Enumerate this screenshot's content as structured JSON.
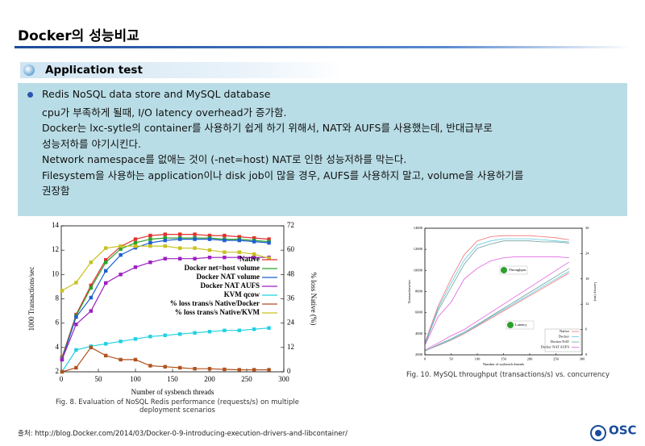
{
  "header": {
    "title": "Docker의 성능비교"
  },
  "section": {
    "title": "Application test"
  },
  "bullet": {
    "lines": [
      "Redis NoSQL data store and MySQL database",
      "cpu가 부족하게 될때, I/O latency  overhead가 증가함.",
      "Docker는 lxc-sytle의  container를  사용하기 쉽게 하기 위해서, NAT와 AUFS를  사용했는데, 반대급부로",
      "성능저하를 야기시킨다.",
      "Network namespace를 없애는 것이 (-net=host)  NAT로 인한 성능저하를 막는다.",
      "Filesystem을  사용하는 application이나  disk job이 많을 경우, AUFS를  사용하지 말고, volume을 사용하기를",
      "권장함"
    ]
  },
  "chart_data": [
    {
      "type": "line",
      "caption": "Fig. 8. Evaluation of NoSQL Redis performance (requests/s) on multiple deployment scenarios",
      "xlabel": "Number of sysbench threads",
      "ylabel": "1000 Transactions/sec",
      "y2label": "% loss Native (%)",
      "x": [
        1,
        20,
        40,
        60,
        80,
        100,
        120,
        140,
        160,
        180,
        200,
        220,
        240,
        260,
        280
      ],
      "xlim": [
        0,
        300
      ],
      "xticks": [
        0,
        50,
        100,
        150,
        200,
        250,
        300
      ],
      "ylim": [
        2,
        14
      ],
      "yticks": [
        2,
        4,
        6,
        8,
        10,
        12,
        14
      ],
      "y2lim": [
        0,
        72
      ],
      "y2ticks": [
        0,
        12,
        24,
        36,
        48,
        60,
        72
      ],
      "legend": "right",
      "series": [
        {
          "name": "Native",
          "color": "#e0302c",
          "values": [
            3.2,
            6.7,
            9.1,
            11.2,
            12.3,
            12.9,
            13.2,
            13.3,
            13.3,
            13.3,
            13.2,
            13.2,
            13.1,
            13.0,
            12.9
          ]
        },
        {
          "name": "Docker net=host volume",
          "color": "#2ca02c",
          "values": [
            3.1,
            6.6,
            8.9,
            11.0,
            12.1,
            12.6,
            12.9,
            13.0,
            13.0,
            13.0,
            13.0,
            12.9,
            12.9,
            12.8,
            12.7
          ]
        },
        {
          "name": "Docker NAT volume",
          "color": "#1f5fd0",
          "values": [
            3.0,
            6.5,
            8.1,
            10.3,
            11.6,
            12.2,
            12.6,
            12.8,
            12.9,
            12.9,
            12.9,
            12.8,
            12.8,
            12.7,
            12.6
          ]
        },
        {
          "name": "Docker NAT AUFS",
          "color": "#9c1fc0",
          "values": [
            3.0,
            5.9,
            7.0,
            9.3,
            10.0,
            10.6,
            11.0,
            11.3,
            11.3,
            11.3,
            11.4,
            11.4,
            11.4,
            11.4,
            11.4
          ]
        },
        {
          "name": "KVM qcow",
          "color": "#22d0e0",
          "values": [
            2.0,
            3.8,
            4.1,
            4.3,
            4.5,
            4.7,
            4.9,
            5.0,
            5.1,
            5.2,
            5.3,
            5.4,
            5.4,
            5.5,
            5.6
          ]
        },
        {
          "name": "% loss trans/s Native/Docker",
          "color": "#b0521e",
          "axis": "y2",
          "values": [
            0,
            2,
            12,
            8,
            6,
            6,
            3,
            2.5,
            2,
            1.5,
            1.5,
            1.2,
            1,
            1,
            1
          ]
        },
        {
          "name": "% loss trans/s Native/KVM",
          "color": "#c8c020",
          "axis": "y2",
          "values": [
            40,
            44,
            54,
            61,
            62,
            62,
            62,
            62,
            61,
            61,
            60,
            59,
            59,
            58,
            56
          ]
        }
      ]
    },
    {
      "type": "line",
      "caption": "Fig. 10. MySQL throughput (transactions/s) vs. concurrency",
      "xlabel": "Number of sysbench threads",
      "ylabel": "Transactions/sec",
      "y2label": "Latency (ms)",
      "x": [
        1,
        25,
        50,
        75,
        100,
        125,
        150,
        175,
        200,
        225,
        250,
        275
      ],
      "xlim": [
        0,
        300
      ],
      "xticks": [
        0,
        50,
        100,
        150,
        200,
        250,
        300
      ],
      "ylim": [
        2000,
        14000
      ],
      "yticks": [
        2000,
        4000,
        6000,
        8000,
        10000,
        12000,
        14000
      ],
      "y2lim": [
        0,
        30
      ],
      "y2ticks": [
        0,
        6,
        12,
        18,
        24,
        30
      ],
      "legend": "lower right",
      "annotations": [
        "Throughput",
        "Latency"
      ],
      "series": [
        {
          "name": "Native",
          "color": "#f07070",
          "values": [
            3300,
            6600,
            9200,
            11500,
            12800,
            13200,
            13300,
            13300,
            13300,
            13200,
            13100,
            12900
          ],
          "latency": [
            1,
            2.2,
            3.5,
            5,
            6.8,
            8.6,
            10.4,
            12.2,
            14,
            15.8,
            17.6,
            19.4
          ]
        },
        {
          "name": "Docker",
          "color": "#60c8e0",
          "values": [
            3200,
            6400,
            8800,
            11000,
            12400,
            12800,
            13000,
            13000,
            13000,
            12900,
            12800,
            12700
          ],
          "latency": [
            1,
            2.3,
            3.6,
            5.2,
            7,
            8.9,
            10.7,
            12.5,
            14.3,
            16.2,
            18,
            19.8
          ]
        },
        {
          "name": "Docker NAT",
          "color": "#70a0a0",
          "values": [
            3100,
            6200,
            8400,
            10600,
            12100,
            12500,
            12800,
            12800,
            12800,
            12700,
            12700,
            12600
          ],
          "latency": [
            1,
            2.4,
            3.8,
            5.4,
            7.2,
            9.1,
            11,
            12.9,
            14.8,
            16.7,
            18.6,
            20.5
          ]
        },
        {
          "name": "Docker NAT AUFS",
          "color": "#e060e0",
          "values": [
            3000,
            5600,
            7000,
            9200,
            10200,
            10900,
            11200,
            11300,
            11300,
            11300,
            11300,
            11200
          ],
          "latency": [
            1.2,
            2.8,
            4.5,
            6,
            8,
            10,
            12,
            14,
            16,
            18,
            20,
            22
          ]
        }
      ]
    }
  ],
  "footer": {
    "source": "출처: http://blog.Docker.com/2014/03/Docker-0-9-introducing-execution-drivers-and-libcontainer/",
    "logo": "OSC"
  }
}
